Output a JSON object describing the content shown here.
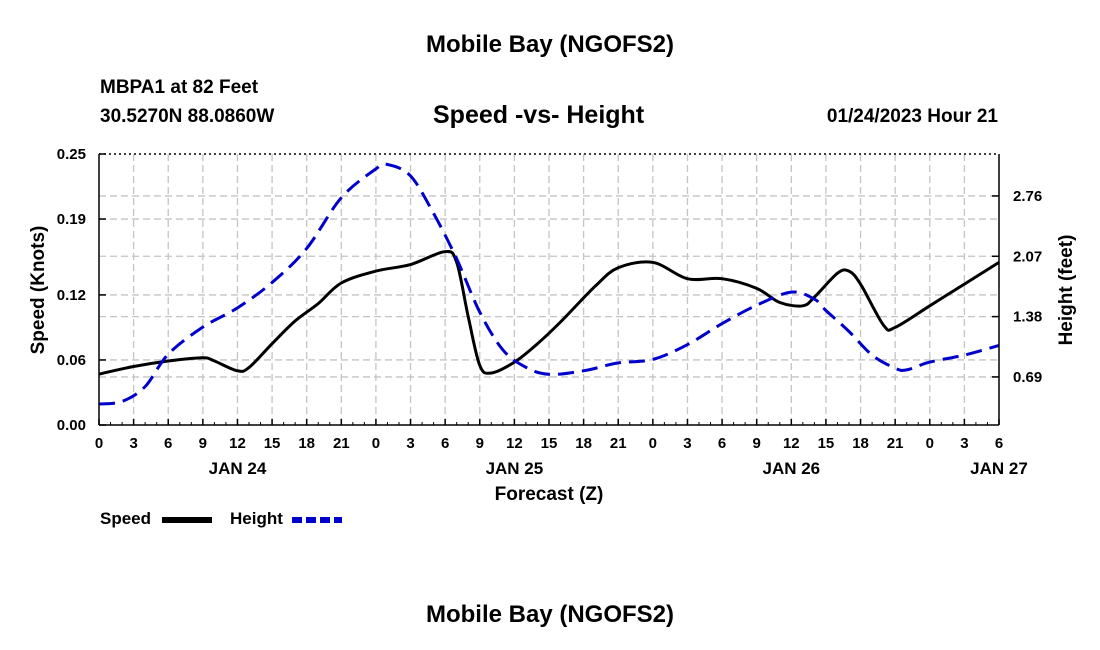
{
  "header": {
    "title": "Mobile Bay (NGOFS2)",
    "station": "MBPA1 at 82 Feet",
    "coordinates": "30.5270N  88.0860W",
    "timestamp": "01/24/2023 Hour 21"
  },
  "footer": {
    "title": "Mobile Bay (NGOFS2)"
  },
  "chart_data": {
    "type": "line",
    "title": "Speed -vs- Height",
    "xlabel": "Forecast (Z)",
    "ylabel": "Speed (Knots)",
    "y2label": "Height (feet)",
    "x_tick_labels": [
      "0",
      "3",
      "6",
      "9",
      "12",
      "15",
      "18",
      "21",
      "0",
      "3",
      "6",
      "9",
      "12",
      "15",
      "18",
      "21",
      "0",
      "3",
      "6",
      "9",
      "12",
      "15",
      "18",
      "21",
      "0",
      "3",
      "6"
    ],
    "date_labels": [
      {
        "label": "JAN 24",
        "hour": 12
      },
      {
        "label": "JAN 25",
        "hour": 36
      },
      {
        "label": "JAN 26",
        "hour": 60
      },
      {
        "label": "JAN 27",
        "hour": 78
      }
    ],
    "xlim": [
      0,
      78
    ],
    "ylim": [
      0,
      0.25
    ],
    "y_ticks": [
      0.0,
      0.06,
      0.12,
      0.19,
      0.25
    ],
    "y_tick_labels": [
      "0.00",
      "0.06",
      "0.12",
      "0.19",
      "0.25"
    ],
    "y2lim": [
      0.14,
      3.24
    ],
    "y2_ticks": [
      0.69,
      1.38,
      2.07,
      2.76
    ],
    "y2_tick_labels": [
      "0.69",
      "1.38",
      "2.07",
      "2.76"
    ],
    "grid": true,
    "legend_position": "bottom-left",
    "series": [
      {
        "name": "Speed",
        "axis": "left",
        "color": "#000000",
        "style": "solid",
        "x": [
          0,
          3,
          6,
          9,
          10,
          12,
          13,
          15,
          17,
          19,
          21,
          24,
          27,
          30,
          31,
          32,
          33,
          34,
          36,
          38,
          40,
          43,
          45,
          48,
          51,
          54,
          57,
          59,
          61,
          62,
          64,
          65,
          66,
          68,
          69,
          72,
          75,
          78
        ],
        "values": [
          0.047,
          0.054,
          0.059,
          0.062,
          0.059,
          0.05,
          0.053,
          0.075,
          0.096,
          0.112,
          0.131,
          0.142,
          0.148,
          0.16,
          0.15,
          0.1,
          0.055,
          0.048,
          0.058,
          0.075,
          0.095,
          0.128,
          0.145,
          0.15,
          0.135,
          0.135,
          0.126,
          0.113,
          0.11,
          0.118,
          0.14,
          0.142,
          0.13,
          0.092,
          0.09,
          0.11,
          0.13,
          0.15
        ]
      },
      {
        "name": "Height",
        "axis": "right",
        "color": "#0000cc",
        "style": "dashed",
        "x": [
          0,
          2,
          4,
          6,
          9,
          12,
          15,
          18,
          21,
          24,
          25,
          27,
          29,
          31,
          33,
          35,
          37,
          39,
          42,
          45,
          48,
          51,
          54,
          57,
          60,
          62,
          63,
          65,
          67,
          69,
          70,
          72,
          75,
          78
        ],
        "values": [
          0.38,
          0.41,
          0.58,
          0.95,
          1.26,
          1.48,
          1.77,
          2.16,
          2.74,
          3.07,
          3.12,
          2.99,
          2.56,
          2.04,
          1.43,
          1.0,
          0.8,
          0.72,
          0.76,
          0.85,
          0.89,
          1.06,
          1.3,
          1.51,
          1.66,
          1.58,
          1.45,
          1.21,
          0.94,
          0.79,
          0.77,
          0.86,
          0.94,
          1.05
        ]
      }
    ]
  }
}
